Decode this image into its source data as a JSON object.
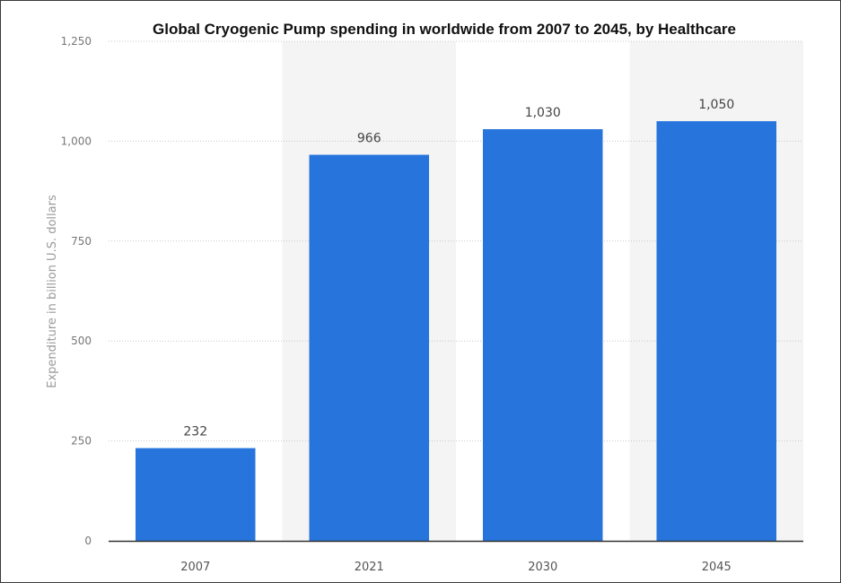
{
  "chart_data": {
    "type": "bar",
    "title": "Global Cryogenic Pump spending in worldwide from 2007 to 2045, by Healthcare",
    "xlabel": "",
    "ylabel": "Expenditure in billion U.S. dollars",
    "categories": [
      "2007",
      "2021",
      "2030",
      "2045"
    ],
    "values": [
      232,
      966,
      1030,
      1050
    ],
    "value_labels": [
      "232",
      "966",
      "1,030",
      "1,050"
    ],
    "ylim": [
      0,
      1250
    ],
    "yticks": [
      0,
      250,
      500,
      750,
      1000,
      1250
    ],
    "ytick_labels": [
      "0",
      "250",
      "500",
      "750",
      "1,000",
      "1,250"
    ],
    "grid": true,
    "bar_color": "#2775dc",
    "alt_band_color": "#f4f4f4"
  }
}
